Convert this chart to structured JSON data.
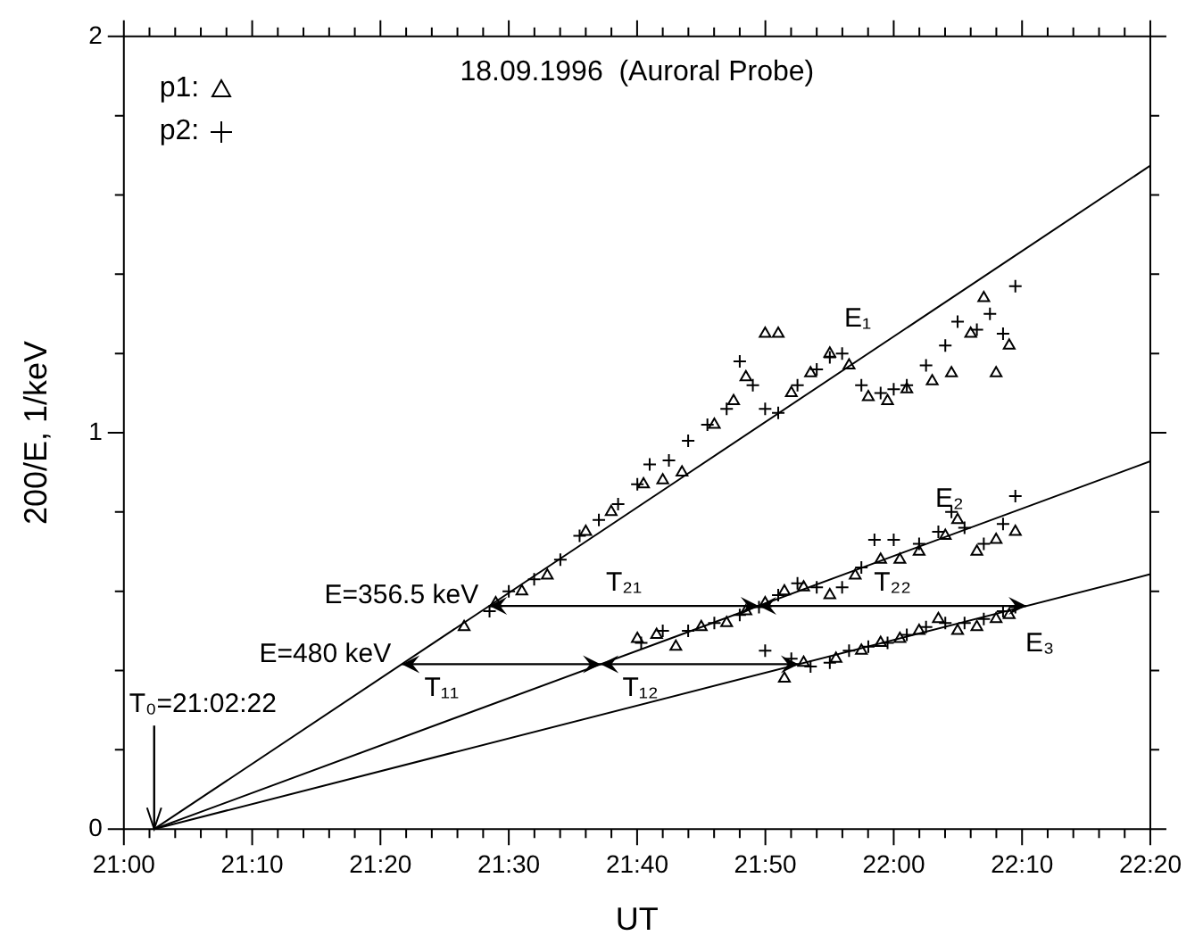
{
  "chart_data": {
    "type": "scatter",
    "title": "18.09.1996  (Auroral Probe)",
    "xlabel": "UT",
    "ylabel": "200/E, 1/keV",
    "xlim": [
      21,
      22.3333
    ],
    "ylim": [
      0,
      2
    ],
    "xticks": [
      {
        "value": 21,
        "label": "21:00"
      },
      {
        "value": 21.0333,
        "label": null
      },
      {
        "value": 21.0667,
        "label": null
      },
      {
        "value": 21.1,
        "label": null
      },
      {
        "value": 21.1333,
        "label": null
      },
      {
        "value": 21.1667,
        "label": "21:10"
      },
      {
        "value": 21.2,
        "label": null
      },
      {
        "value": 21.2333,
        "label": null
      },
      {
        "value": 21.2667,
        "label": null
      },
      {
        "value": 21.3,
        "label": null
      },
      {
        "value": 21.3333,
        "label": "21:20"
      },
      {
        "value": 21.3667,
        "label": null
      },
      {
        "value": 21.4,
        "label": null
      },
      {
        "value": 21.4333,
        "label": null
      },
      {
        "value": 21.4667,
        "label": null
      },
      {
        "value": 21.5,
        "label": "21:30"
      },
      {
        "value": 21.5333,
        "label": null
      },
      {
        "value": 21.5667,
        "label": null
      },
      {
        "value": 21.6,
        "label": null
      },
      {
        "value": 21.6333,
        "label": null
      },
      {
        "value": 21.6667,
        "label": "21:40"
      },
      {
        "value": 21.7,
        "label": null
      },
      {
        "value": 21.7333,
        "label": null
      },
      {
        "value": 21.7667,
        "label": null
      },
      {
        "value": 21.8,
        "label": null
      },
      {
        "value": 21.8333,
        "label": "21:50"
      },
      {
        "value": 21.8667,
        "label": null
      },
      {
        "value": 21.9,
        "label": null
      },
      {
        "value": 21.9333,
        "label": null
      },
      {
        "value": 21.9667,
        "label": null
      },
      {
        "value": 22,
        "label": "22:00"
      },
      {
        "value": 22.0333,
        "label": null
      },
      {
        "value": 22.0667,
        "label": null
      },
      {
        "value": 22.1,
        "label": null
      },
      {
        "value": 22.1333,
        "label": null
      },
      {
        "value": 22.1667,
        "label": "22:10"
      },
      {
        "value": 22.2,
        "label": null
      },
      {
        "value": 22.2333,
        "label": null
      },
      {
        "value": 22.2667,
        "label": null
      },
      {
        "value": 22.3,
        "label": null
      },
      {
        "value": 22.3333,
        "label": "22:20"
      }
    ],
    "yticks": [
      0,
      {
        "value": 0.2,
        "label": null
      },
      {
        "value": 0.4,
        "label": null
      },
      {
        "value": 0.6,
        "label": null
      },
      {
        "value": 0.8,
        "label": null
      },
      1,
      {
        "value": 1.2,
        "label": null
      },
      {
        "value": 1.4,
        "label": null
      },
      {
        "value": 1.6,
        "label": null
      },
      {
        "value": 1.8,
        "label": null
      },
      2
    ],
    "grid": false,
    "legend": "top left",
    "line_style": "solid",
    "series": [
      {
        "name": "p1:",
        "type": "scatter",
        "marker": "triangle",
        "color": "#000000",
        "x": [
          21.442,
          21.483,
          21.517,
          21.55,
          21.6,
          21.633,
          21.675,
          21.7,
          21.725,
          21.767,
          21.792,
          21.808,
          21.833,
          21.85,
          21.867,
          21.892,
          21.917,
          21.942,
          21.967,
          21.992,
          22.017,
          22.05,
          22.075,
          22.1,
          22.117,
          22.133,
          22.15,
          21.667,
          21.692,
          21.717,
          21.75,
          21.783,
          21.808,
          21.833,
          21.858,
          21.883,
          21.917,
          21.95,
          21.983,
          22.008,
          22.033,
          22.067,
          22.083,
          22.108,
          22.133,
          22.158,
          21.858,
          21.883,
          21.925,
          21.958,
          21.983,
          22.008,
          22.033,
          22.058,
          22.083,
          22.108,
          22.133,
          22.15
        ],
        "values": [
          0.51,
          0.57,
          0.6,
          0.64,
          0.75,
          0.8,
          0.87,
          0.88,
          0.9,
          1.02,
          1.08,
          1.14,
          1.25,
          1.25,
          1.1,
          1.15,
          1.2,
          1.17,
          1.09,
          1.08,
          1.11,
          1.13,
          1.15,
          1.25,
          1.34,
          1.15,
          1.22,
          0.48,
          0.49,
          0.46,
          0.51,
          0.52,
          0.55,
          0.57,
          0.6,
          0.61,
          0.59,
          0.64,
          0.68,
          0.68,
          0.7,
          0.74,
          0.78,
          0.7,
          0.73,
          0.75,
          0.38,
          0.42,
          0.43,
          0.45,
          0.47,
          0.48,
          0.5,
          0.53,
          0.5,
          0.51,
          0.53,
          0.54
        ]
      },
      {
        "name": "p2:",
        "type": "scatter",
        "marker": "cross",
        "color": "#000000",
        "x": [
          21.475,
          21.5,
          21.533,
          21.567,
          21.592,
          21.617,
          21.642,
          21.667,
          21.683,
          21.708,
          21.733,
          21.758,
          21.783,
          21.8,
          21.817,
          21.833,
          21.85,
          21.875,
          21.9,
          21.917,
          21.933,
          21.958,
          21.983,
          22,
          22.017,
          22.042,
          22.067,
          22.083,
          22.108,
          22.125,
          22.142,
          22.158,
          21.672,
          21.7,
          21.733,
          21.767,
          21.8,
          21.825,
          21.85,
          21.875,
          21.9,
          21.933,
          21.958,
          21.975,
          22,
          22.033,
          22.058,
          22.075,
          22.092,
          22.117,
          22.142,
          22.158,
          21.833,
          21.867,
          21.892,
          21.917,
          21.942,
          21.967,
          21.992,
          22.017,
          22.042,
          22.067,
          22.092,
          22.117,
          22.142,
          22.158
        ],
        "values": [
          0.55,
          0.6,
          0.63,
          0.68,
          0.74,
          0.78,
          0.82,
          0.87,
          0.92,
          0.93,
          0.98,
          1.02,
          1.06,
          1.18,
          1.12,
          1.06,
          1.05,
          1.12,
          1.16,
          1.19,
          1.2,
          1.12,
          1.1,
          1.11,
          1.12,
          1.17,
          1.22,
          1.28,
          1.26,
          1.3,
          1.25,
          1.37,
          0.47,
          0.5,
          0.5,
          0.52,
          0.54,
          0.56,
          0.59,
          0.62,
          0.61,
          0.61,
          0.66,
          0.73,
          0.73,
          0.72,
          0.75,
          0.8,
          0.76,
          0.72,
          0.77,
          0.84,
          0.45,
          0.43,
          0.41,
          0.42,
          0.45,
          0.46,
          0.47,
          0.49,
          0.51,
          0.52,
          0.52,
          0.53,
          0.55,
          0.56
        ]
      },
      {
        "type": "line",
        "marker": "none",
        "color": "#000000",
        "x": [
          21.0394,
          22.3333
        ],
        "values": [
          0,
          1.674
        ]
      },
      {
        "type": "line",
        "marker": "none",
        "color": "#000000",
        "x": [
          21.0394,
          22.3333
        ],
        "values": [
          0,
          0.928
        ]
      },
      {
        "type": "line",
        "marker": "none",
        "color": "#000000",
        "x": [
          21.0394,
          22.3333
        ],
        "values": [
          0,
          0.643
        ]
      }
    ],
    "annotations": [
      {
        "text": "E=356.5 keV",
        "x": 21.4746,
        "y": 0.563
      },
      {
        "text": "E=480 keV",
        "x": 21.361,
        "y": 0.416
      },
      {
        "text": "T₀=21:02:22",
        "x": 21.0394,
        "y": 0
      },
      {
        "text": "E₁",
        "x": 21.98,
        "y": 1.217
      },
      {
        "text": "E₂",
        "x": 22.1,
        "y": 0.761
      },
      {
        "text": "E₃",
        "x": 22.12,
        "y": 0.537
      },
      "T₂₁",
      "T₂₂",
      {
        "text": "T₁₁",
        "x": 21.6194,
        "y": 0.416
      },
      {
        "text": "T₁₂",
        "x": 21.8765,
        "y": 0.416
      }
    ]
  }
}
